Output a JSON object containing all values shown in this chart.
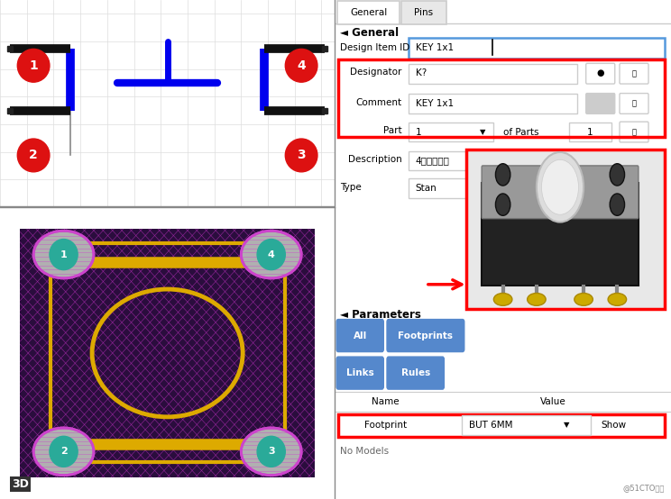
{
  "fig_width": 7.44,
  "fig_height": 5.54,
  "bg_color": "#ffffff",
  "schematic_bg": "#ffffff",
  "pcb_bg": "#1a0a2a",
  "panel_bg": "#f2f2f2",
  "blue": "#0000ee",
  "red_color": "#dd1111",
  "tab_general": "General",
  "tab_pins": "Pins",
  "general_title": "General",
  "design_item_id_label": "Design Item ID",
  "design_item_id_value": "KEY 1x1",
  "designator_label": "Designator",
  "designator_value": "K?",
  "comment_label": "Comment",
  "comment_value": "KEY 1x1",
  "part_label": "Part",
  "part_value": "1",
  "of_parts": "of Parts",
  "of_parts_value": "1",
  "description_label": "Description",
  "description_value": "4脚轻触按键",
  "type_label": "Type",
  "type_value": "Stan",
  "parameters_title": "Parameters",
  "btn_all": "All",
  "btn_footprints": "Footprints",
  "btn_links": "Links",
  "btn_rules": "Rules",
  "name_col": "Name",
  "value_col": "Value",
  "footprint_label": "Footprint",
  "footprint_value": "BUT 6MM",
  "show_label": "Show",
  "no_models": "No Models",
  "watermark": "@51CTO博客",
  "label_3d": "3D",
  "btn_color": "#5588cc",
  "gray_light": "#e8e8e8",
  "border_gray": "#cccccc",
  "text_dark": "#222222",
  "separator_color": "#999999"
}
